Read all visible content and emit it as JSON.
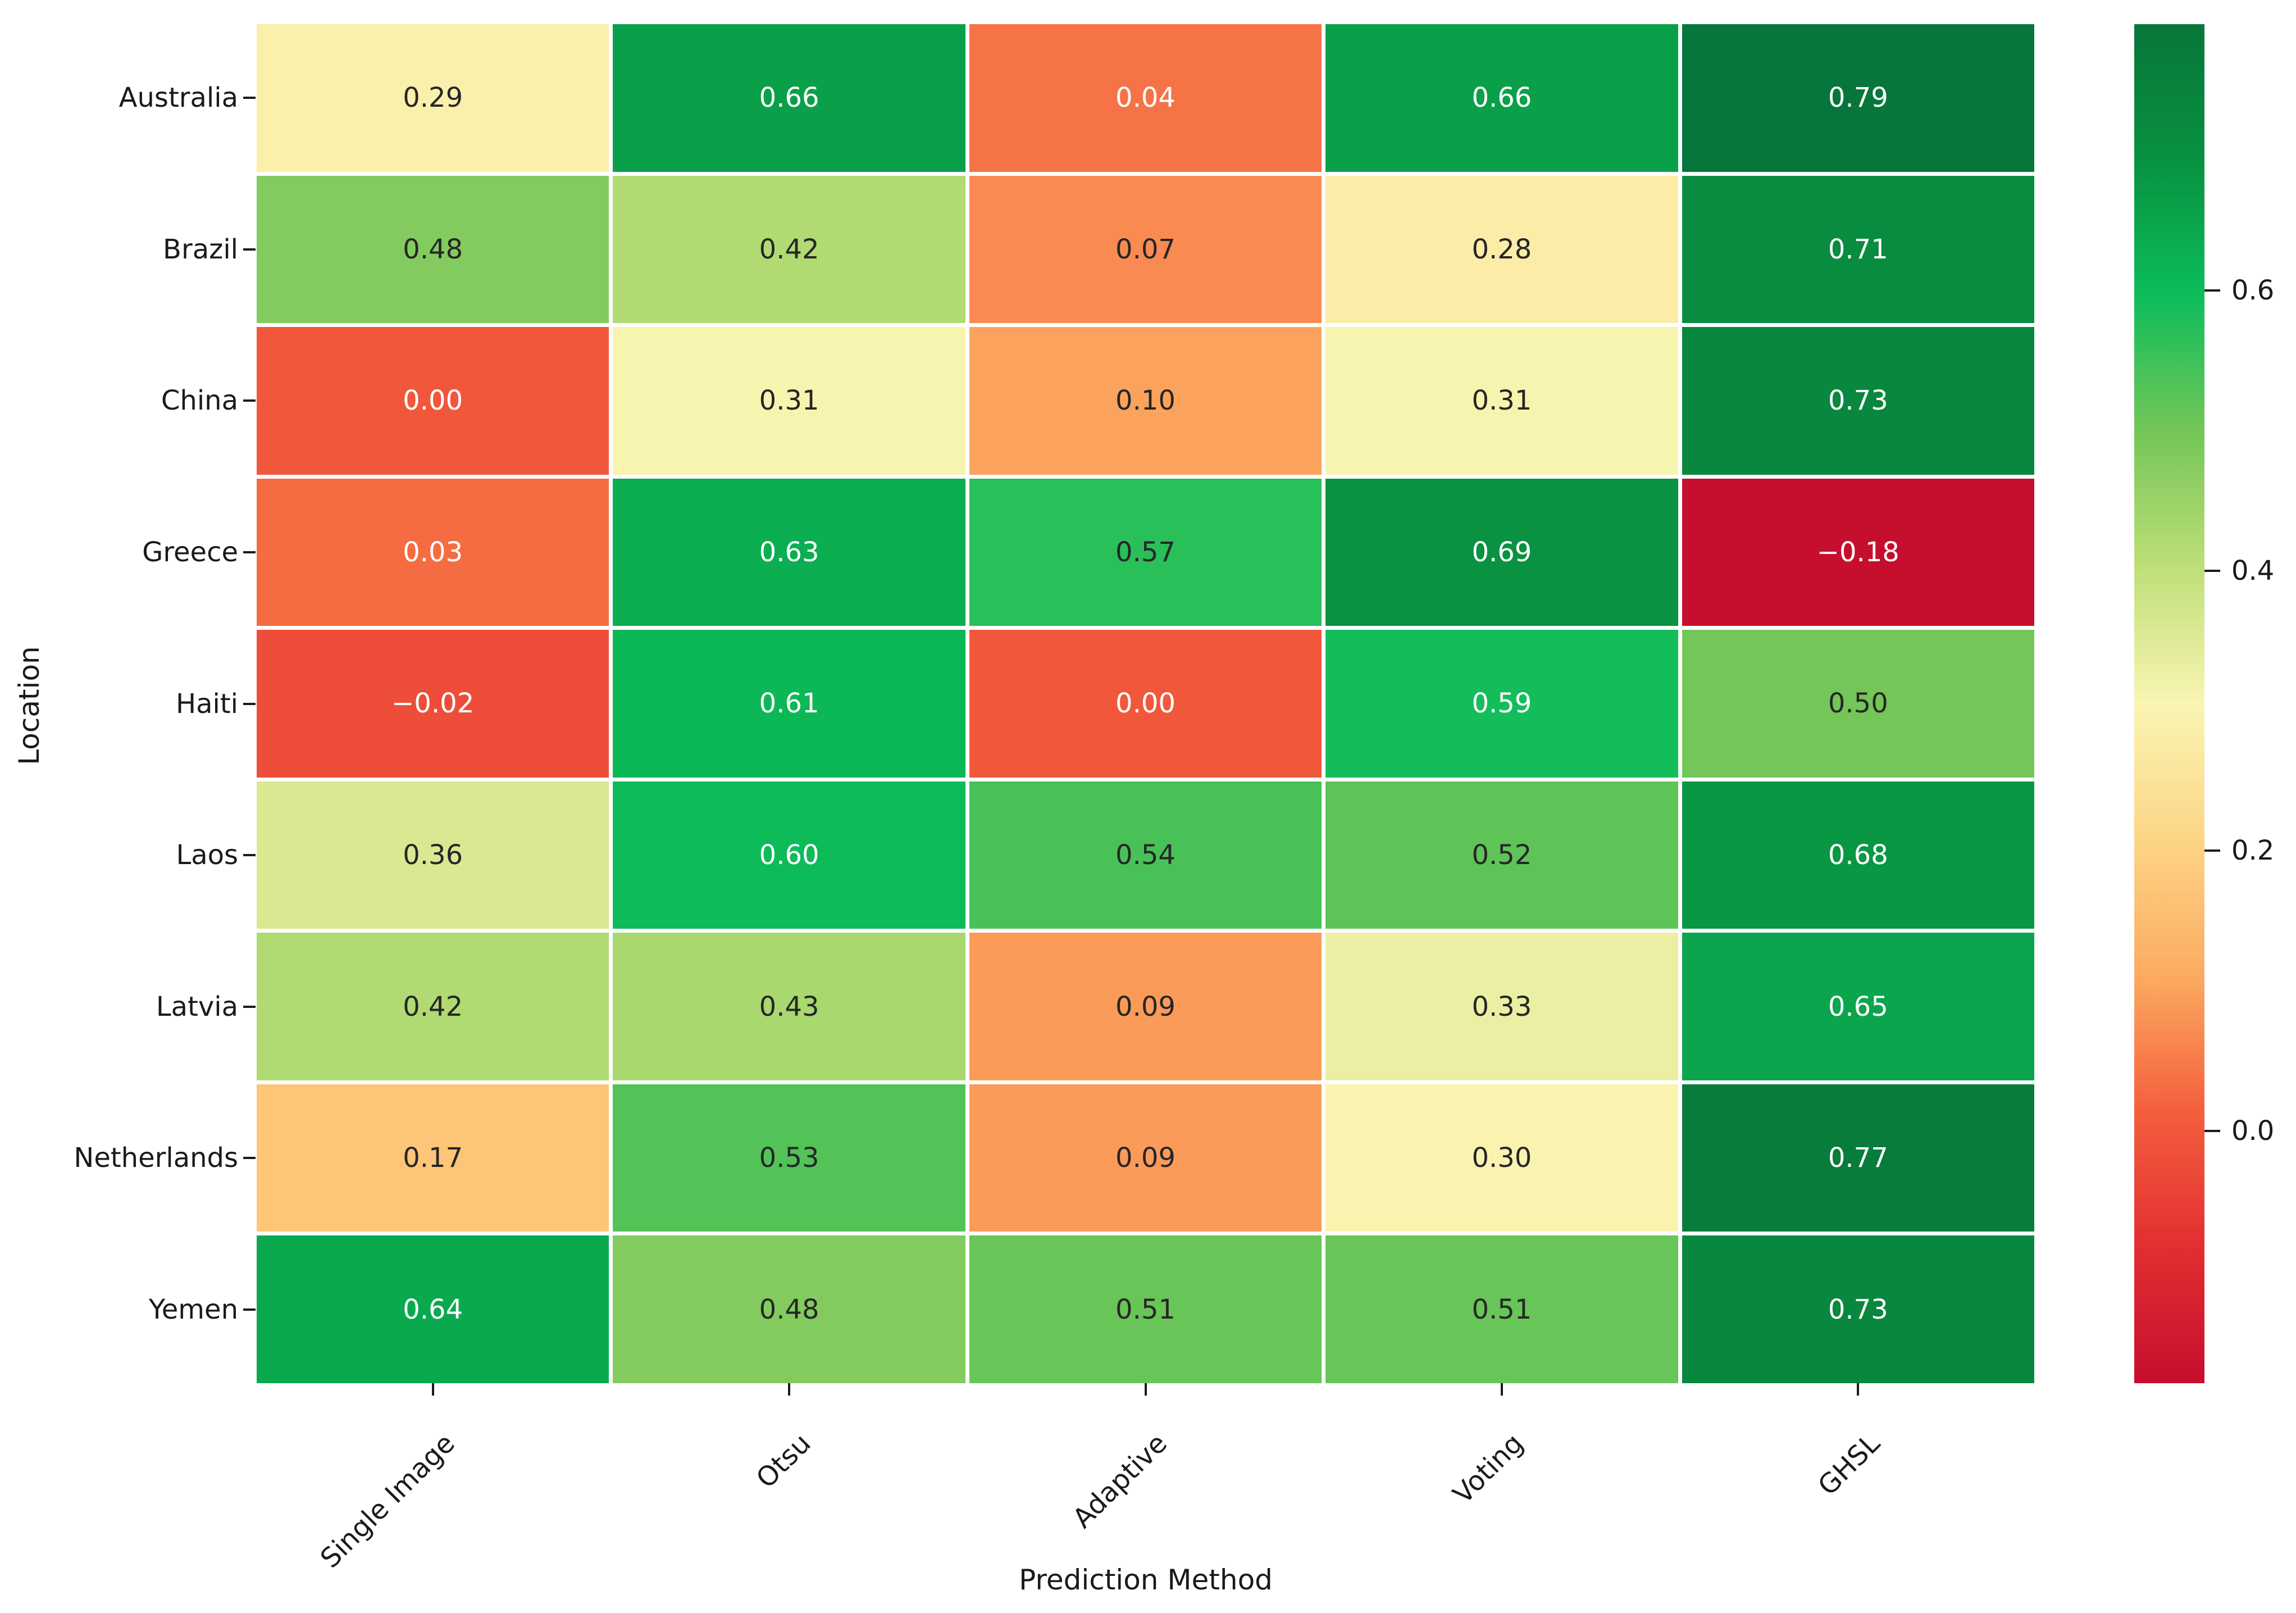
{
  "chart_data": {
    "type": "heatmap",
    "title": "",
    "xlabel": "Prediction Method",
    "ylabel": "Location",
    "columns": [
      "Single Image",
      "Otsu",
      "Adaptive",
      "Voting",
      "GHSL"
    ],
    "rows": [
      "Australia",
      "Brazil",
      "China",
      "Greece",
      "Haiti",
      "Laos",
      "Latvia",
      "Netherlands",
      "Yemen"
    ],
    "values": [
      [
        0.29,
        0.66,
        0.04,
        0.66,
        0.79
      ],
      [
        0.48,
        0.42,
        0.07,
        0.28,
        0.71
      ],
      [
        0.0,
        0.31,
        0.1,
        0.31,
        0.73
      ],
      [
        0.03,
        0.63,
        0.57,
        0.69,
        -0.18
      ],
      [
        -0.02,
        0.61,
        0.0,
        0.59,
        0.5
      ],
      [
        0.36,
        0.6,
        0.54,
        0.52,
        0.68
      ],
      [
        0.42,
        0.43,
        0.09,
        0.33,
        0.65
      ],
      [
        0.17,
        0.53,
        0.09,
        0.3,
        0.77
      ],
      [
        0.64,
        0.48,
        0.51,
        0.51,
        0.73
      ]
    ],
    "value_format": ".2f",
    "vmin": -0.18,
    "vmax": 0.79,
    "colorbar": {
      "position": "right",
      "tick_values": [
        0.6,
        0.4,
        0.2,
        0.0
      ],
      "tick_labels": [
        "0.6",
        "0.4",
        "0.2",
        "0.0"
      ]
    },
    "colormap_stops": [
      "#c60e2e",
      "#e22e31",
      "#f45f3d",
      "#fcab61",
      "#fdd586",
      "#faf5b2",
      "#bfdf79",
      "#74c657",
      "#0dbd5a",
      "#089140",
      "#07763a"
    ],
    "grid_line_color": "#ffffff",
    "annotation_color_dark": "#262626",
    "annotation_color_light": "#ffffff"
  }
}
